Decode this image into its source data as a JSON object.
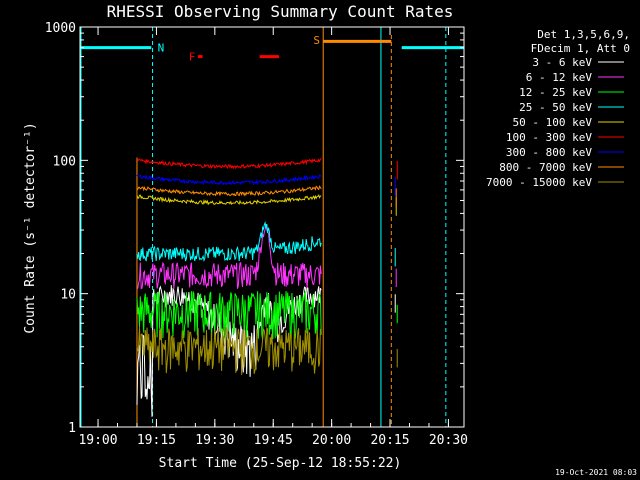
{
  "chart_data": {
    "type": "line",
    "title": "RHESSI Observing Summary Count Rates",
    "xlabel": "Start Time (25-Sep-12 18:55:22)",
    "ylabel": "Count Rate (s⁻¹ detector⁻¹)",
    "yscale": "log",
    "ylim": [
      1,
      1000
    ],
    "xlim": [
      "18:55:22",
      "20:34:00"
    ],
    "x_ticks": [
      "19:00",
      "19:15",
      "19:30",
      "19:45",
      "20:00",
      "20:15",
      "20:30"
    ],
    "y_ticks": [
      "1",
      "10",
      "100",
      "1000"
    ],
    "legend_header": [
      "Det 1,3,5,6,9,",
      "FDecim 1, Att 0"
    ],
    "legend_position": "right",
    "series": [
      {
        "name": "3 - 6 keV",
        "color": "#ffffff",
        "level": 9
      },
      {
        "name": "6 - 12 keV",
        "color": "#ff33ff",
        "level": 14
      },
      {
        "name": "12 - 25 keV",
        "color": "#00ff00",
        "level": 7.5
      },
      {
        "name": "25 - 50 keV",
        "color": "#00ffff",
        "level": 20
      },
      {
        "name": "50 - 100 keV",
        "color": "#e0d000",
        "level": 48
      },
      {
        "name": "100 - 300 keV",
        "color": "#ff0000",
        "level": 90
      },
      {
        "name": "300 - 800 keV",
        "color": "#0000ff",
        "level": 68
      },
      {
        "name": "800 - 7000 keV",
        "color": "#ff8c00",
        "level": 56
      },
      {
        "name": "7000 - 15000 keV",
        "color": "#a09000",
        "level": 3.5
      }
    ],
    "annotations": {
      "night_marker": "N",
      "flare_marker": "F",
      "saa_marker": "S"
    },
    "footer_date": "19-Oct-2021 08:03"
  }
}
